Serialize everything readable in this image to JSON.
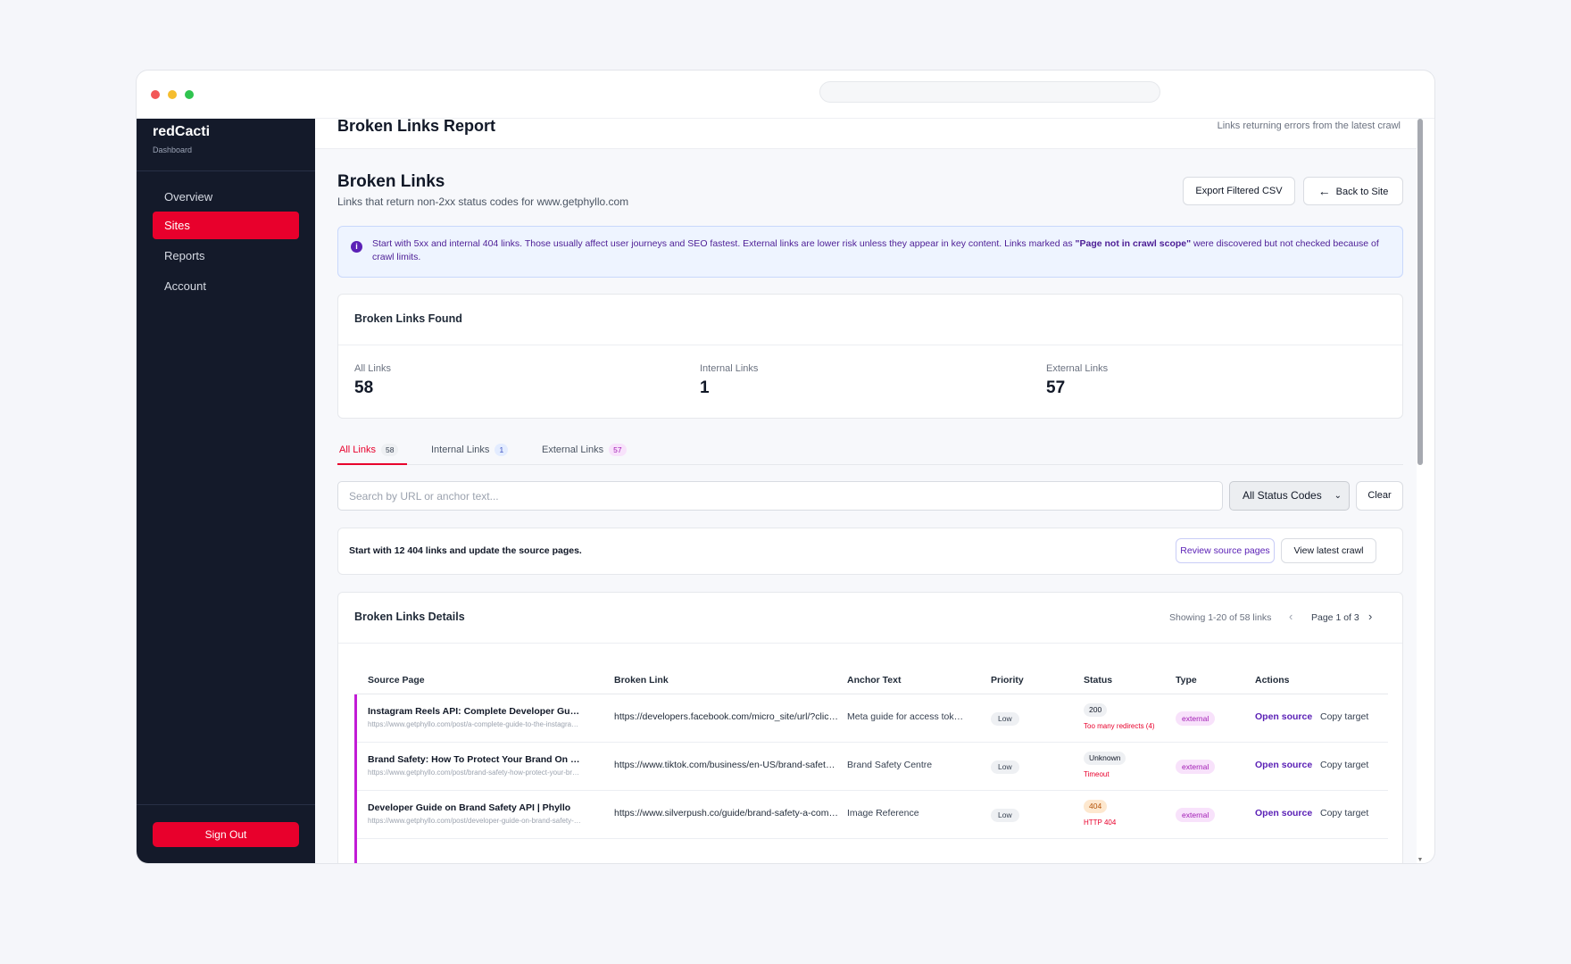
{
  "app": {
    "brand": "redCacti",
    "brand_sub": "Dashboard"
  },
  "sidebar": {
    "items": [
      {
        "label": "Overview"
      },
      {
        "label": "Sites"
      },
      {
        "label": "Reports"
      },
      {
        "label": "Account"
      }
    ],
    "sign_out": "Sign Out"
  },
  "header": {
    "title": "Broken Links Report",
    "subtitle": "Links returning errors from the latest crawl"
  },
  "section": {
    "title": "Broken Links",
    "subtitle": "Links that return non-2xx status codes for www.getphyllo.com",
    "export_label": "Export Filtered CSV",
    "back_label": "Back to Site"
  },
  "info": {
    "text_before": "Start with 5xx and internal 404 links. Those usually affect user journeys and SEO fastest. External links are lower risk unless they appear in key content. Links marked as ",
    "highlight": "\"Page not in crawl scope\"",
    "text_after": " were discovered but not checked because of crawl limits."
  },
  "stats": {
    "title": "Broken Links Found",
    "items": [
      {
        "label": "All Links",
        "value": "58"
      },
      {
        "label": "Internal Links",
        "value": "1"
      },
      {
        "label": "External Links",
        "value": "57"
      }
    ]
  },
  "tabs": [
    {
      "label": "All Links",
      "count": "58"
    },
    {
      "label": "Internal Links",
      "count": "1"
    },
    {
      "label": "External Links",
      "count": "57"
    }
  ],
  "filters": {
    "search_placeholder": "Search by URL or anchor text...",
    "status_select": "All Status Codes",
    "clear_label": "Clear"
  },
  "cta": {
    "text": "Start with 12 404 links and update the source pages.",
    "review_label": "Review source pages",
    "crawl_label": "View latest crawl"
  },
  "table": {
    "title": "Broken Links Details",
    "showing": "Showing 1-20 of 58 links",
    "page": "Page 1 of 3",
    "columns": [
      "Source Page",
      "Broken Link",
      "Anchor Text",
      "Priority",
      "Status",
      "Type",
      "Actions"
    ],
    "rows": [
      {
        "source_title": "Instagram Reels API: Complete Developer Guide",
        "source_url": "https://www.getphyllo.com/post/a-complete-guide-to-the-instagram-reels-api",
        "broken_link": "https://developers.facebook.com/micro_site/url/?click_from_context_menu=true",
        "anchor": "Meta guide for access tokens",
        "priority": "Low",
        "status": "200",
        "status_note": "Too many redirects (4)",
        "type": "external",
        "open": "Open source",
        "copy": "Copy target"
      },
      {
        "source_title": "Brand Safety: How To Protect Your Brand On Social Media",
        "source_url": "https://www.getphyllo.com/post/brand-safety-how-protect-your-brand",
        "broken_link": "https://www.tiktok.com/business/en-US/brand-safety-centre",
        "anchor": "Brand Safety Centre",
        "priority": "Low",
        "status": "Unknown",
        "status_note": "Timeout",
        "type": "external",
        "open": "Open source",
        "copy": "Copy target"
      },
      {
        "source_title": "Developer Guide on Brand Safety API | Phyllo",
        "source_url": "https://www.getphyllo.com/post/developer-guide-on-brand-safety-api",
        "broken_link": "https://www.silverpush.co/guide/brand-safety-a-complete-guide",
        "anchor": "Image Reference",
        "priority": "Low",
        "status": "404",
        "status_note": "HTTP 404",
        "type": "external",
        "open": "Open source",
        "copy": "Copy target"
      }
    ]
  },
  "colors": {
    "accent": "#e8002c",
    "sidebar_bg": "#141a2a",
    "link": "#5b21b6",
    "external": "#a11bb4"
  }
}
